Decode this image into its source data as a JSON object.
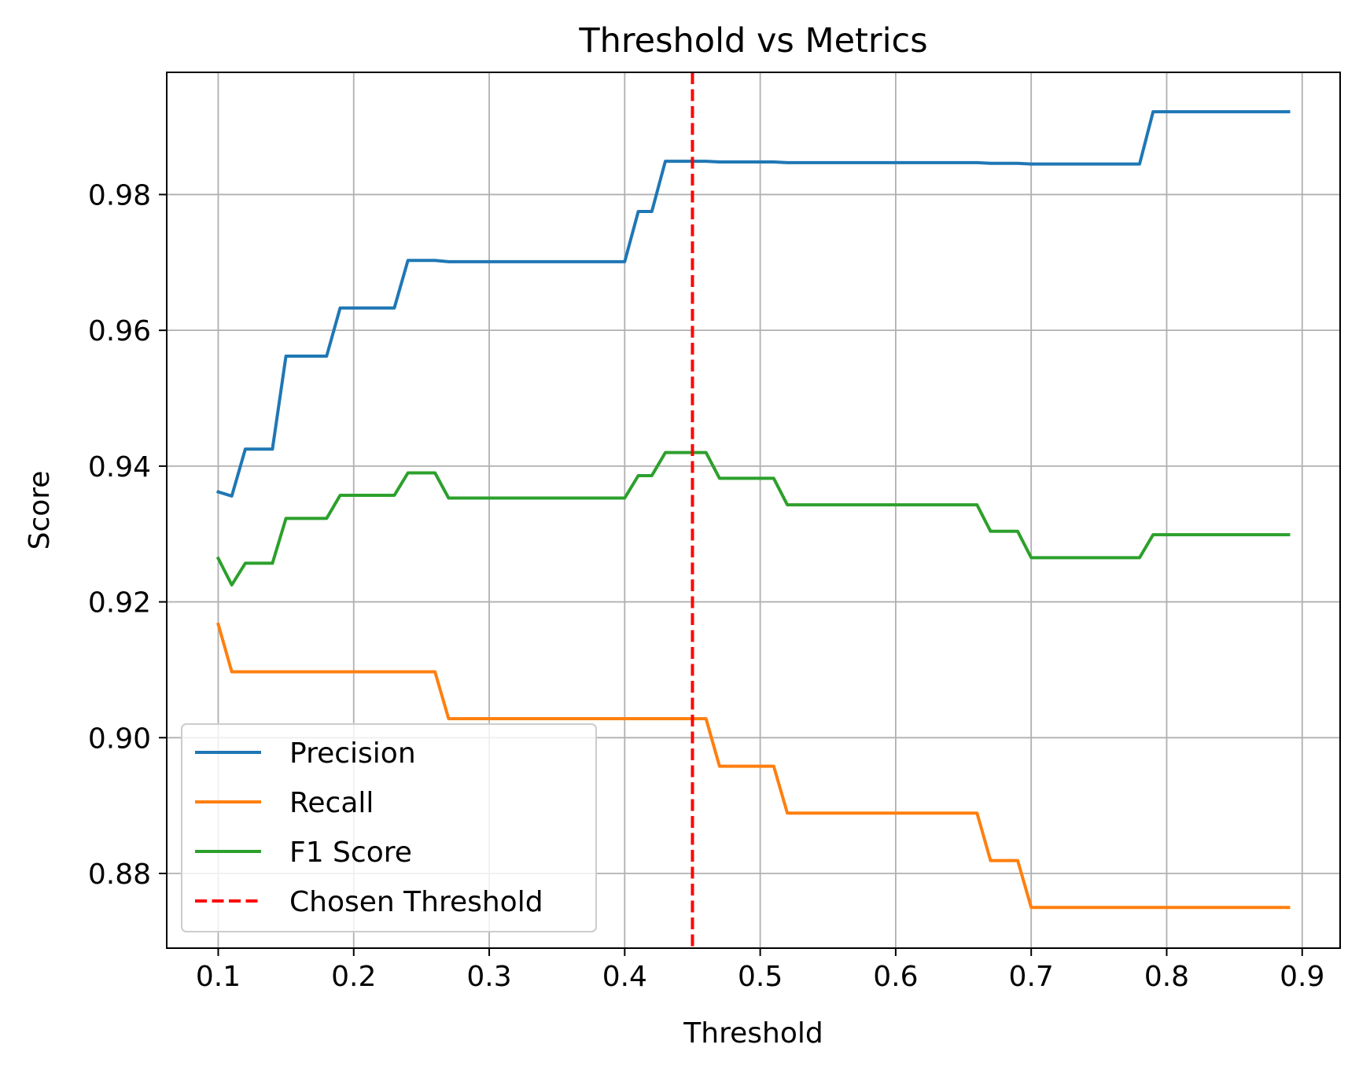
{
  "chart_data": {
    "type": "line",
    "title": "Threshold vs Metrics",
    "xlabel": "Threshold",
    "ylabel": "Score",
    "xlim": [
      0.062,
      0.928
    ],
    "ylim": [
      0.869,
      0.998
    ],
    "xticks": [
      0.1,
      0.2,
      0.3,
      0.4,
      0.5,
      0.6,
      0.7,
      0.8,
      0.9
    ],
    "xtick_labels": [
      "0.1",
      "0.2",
      "0.3",
      "0.4",
      "0.5",
      "0.6",
      "0.7",
      "0.8",
      "0.9"
    ],
    "yticks": [
      0.88,
      0.9,
      0.92,
      0.94,
      0.96,
      0.98
    ],
    "ytick_labels": [
      "0.88",
      "0.90",
      "0.92",
      "0.94",
      "0.96",
      "0.98"
    ],
    "grid": true,
    "legend_position": "lower-left",
    "x": [
      0.1,
      0.11,
      0.12,
      0.13,
      0.14,
      0.15,
      0.16,
      0.17,
      0.18,
      0.19,
      0.2,
      0.21,
      0.22,
      0.23,
      0.24,
      0.25,
      0.26,
      0.27,
      0.28,
      0.29,
      0.3,
      0.31,
      0.32,
      0.33,
      0.34,
      0.35,
      0.36,
      0.37,
      0.38,
      0.39,
      0.4,
      0.41,
      0.42,
      0.43,
      0.44,
      0.45,
      0.46,
      0.47,
      0.48,
      0.49,
      0.5,
      0.51,
      0.52,
      0.53,
      0.54,
      0.55,
      0.56,
      0.57,
      0.58,
      0.59,
      0.6,
      0.61,
      0.62,
      0.63,
      0.64,
      0.65,
      0.66,
      0.67,
      0.68,
      0.69,
      0.7,
      0.71,
      0.72,
      0.73,
      0.74,
      0.75,
      0.76,
      0.77,
      0.78,
      0.79,
      0.8,
      0.81,
      0.82,
      0.83,
      0.84,
      0.85,
      0.86,
      0.87,
      0.88,
      0.89
    ],
    "series": [
      {
        "name": "Precision",
        "color": "#1f77b4",
        "dash": "solid",
        "values": [
          0.9362,
          0.9356,
          0.9425,
          0.9425,
          0.9425,
          0.9562,
          0.9562,
          0.9562,
          0.9562,
          0.9633,
          0.9633,
          0.9633,
          0.9633,
          0.9633,
          0.9703,
          0.9703,
          0.9703,
          0.9701,
          0.9701,
          0.9701,
          0.9701,
          0.9701,
          0.9701,
          0.9701,
          0.9701,
          0.9701,
          0.9701,
          0.9701,
          0.9701,
          0.9701,
          0.9701,
          0.9775,
          0.9775,
          0.9849,
          0.9849,
          0.9849,
          0.9849,
          0.9848,
          0.9848,
          0.9848,
          0.9848,
          0.9848,
          0.9847,
          0.9847,
          0.9847,
          0.9847,
          0.9847,
          0.9847,
          0.9847,
          0.9847,
          0.9847,
          0.9847,
          0.9847,
          0.9847,
          0.9847,
          0.9847,
          0.9847,
          0.9846,
          0.9846,
          0.9846,
          0.9845,
          0.9845,
          0.9845,
          0.9845,
          0.9845,
          0.9845,
          0.9845,
          0.9845,
          0.9845,
          0.9922,
          0.9922,
          0.9922,
          0.9922,
          0.9922,
          0.9922,
          0.9922,
          0.9922,
          0.9922,
          0.9922,
          0.9922
        ]
      },
      {
        "name": "Recall",
        "color": "#ff7f0e",
        "dash": "solid",
        "values": [
          0.9167,
          0.9097,
          0.9097,
          0.9097,
          0.9097,
          0.9097,
          0.9097,
          0.9097,
          0.9097,
          0.9097,
          0.9097,
          0.9097,
          0.9097,
          0.9097,
          0.9097,
          0.9097,
          0.9097,
          0.9028,
          0.9028,
          0.9028,
          0.9028,
          0.9028,
          0.9028,
          0.9028,
          0.9028,
          0.9028,
          0.9028,
          0.9028,
          0.9028,
          0.9028,
          0.9028,
          0.9028,
          0.9028,
          0.9028,
          0.9028,
          0.9028,
          0.9028,
          0.8958,
          0.8958,
          0.8958,
          0.8958,
          0.8958,
          0.8889,
          0.8889,
          0.8889,
          0.8889,
          0.8889,
          0.8889,
          0.8889,
          0.8889,
          0.8889,
          0.8889,
          0.8889,
          0.8889,
          0.8889,
          0.8889,
          0.8889,
          0.8819,
          0.8819,
          0.8819,
          0.875,
          0.875,
          0.875,
          0.875,
          0.875,
          0.875,
          0.875,
          0.875,
          0.875,
          0.875,
          0.875,
          0.875,
          0.875,
          0.875,
          0.875,
          0.875,
          0.875,
          0.875,
          0.875,
          0.875
        ]
      },
      {
        "name": "F1 Score",
        "color": "#2ca02c",
        "dash": "solid",
        "values": [
          0.9264,
          0.9225,
          0.9257,
          0.9257,
          0.9257,
          0.9323,
          0.9323,
          0.9323,
          0.9323,
          0.9357,
          0.9357,
          0.9357,
          0.9357,
          0.9357,
          0.939,
          0.939,
          0.939,
          0.9353,
          0.9353,
          0.9353,
          0.9353,
          0.9353,
          0.9353,
          0.9353,
          0.9353,
          0.9353,
          0.9353,
          0.9353,
          0.9353,
          0.9353,
          0.9353,
          0.9386,
          0.9386,
          0.942,
          0.942,
          0.942,
          0.942,
          0.9382,
          0.9382,
          0.9382,
          0.9382,
          0.9382,
          0.9343,
          0.9343,
          0.9343,
          0.9343,
          0.9343,
          0.9343,
          0.9343,
          0.9343,
          0.9343,
          0.9343,
          0.9343,
          0.9343,
          0.9343,
          0.9343,
          0.9343,
          0.9304,
          0.9304,
          0.9304,
          0.9265,
          0.9265,
          0.9265,
          0.9265,
          0.9265,
          0.9265,
          0.9265,
          0.9265,
          0.9265,
          0.9299,
          0.9299,
          0.9299,
          0.9299,
          0.9299,
          0.9299,
          0.9299,
          0.9299,
          0.9299,
          0.9299,
          0.9299
        ]
      }
    ],
    "vline": {
      "name": "Chosen Threshold",
      "x": 0.45,
      "color": "#ff0000",
      "dash": "dashed"
    },
    "legend": [
      "Precision",
      "Recall",
      "F1 Score",
      "Chosen Threshold"
    ]
  }
}
